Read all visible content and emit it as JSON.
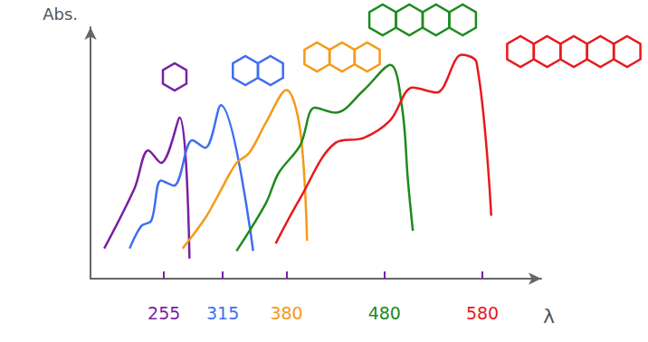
{
  "chart_data": {
    "type": "line",
    "x_label": "λ",
    "y_label": "Abs.",
    "xlim": [
      180,
      640
    ],
    "xticks": [
      255,
      315,
      380,
      480,
      580
    ],
    "ylim": [
      0,
      10
    ],
    "grid": false,
    "tick_labels": "x",
    "series": [
      {
        "color": "#7b1fa2",
        "x": [
          194,
          225,
          239,
          252,
          271,
          281
        ],
        "values": [
          1.2,
          3.6,
          5.1,
          4.6,
          6.4,
          0.8
        ]
      },
      {
        "color": "#3d6ff0",
        "x": [
          220,
          232,
          242,
          252,
          265,
          284,
          297,
          313,
          346
        ],
        "values": [
          1.2,
          2.1,
          2.3,
          3.9,
          3.7,
          5.5,
          5.2,
          6.9,
          1.1
        ]
      },
      {
        "color": "#f59a16",
        "x": [
          274,
          297,
          310,
          329,
          342,
          359,
          380,
          394,
          401
        ],
        "values": [
          1.2,
          2.4,
          3.3,
          4.6,
          5.0,
          6.2,
          7.5,
          5.9,
          1.5
        ]
      },
      {
        "color": "#1e8a1e",
        "x": [
          329,
          359,
          372,
          394,
          409,
          430,
          459,
          486,
          498,
          504,
          509
        ],
        "values": [
          1.1,
          3.0,
          4.2,
          5.3,
          6.8,
          6.6,
          7.5,
          8.5,
          6.8,
          3.9,
          1.9
        ]
      },
      {
        "color": "#e8191c",
        "x": [
          369,
          394,
          430,
          459,
          486,
          509,
          533,
          559,
          574,
          589
        ],
        "values": [
          1.4,
          3.2,
          5.4,
          5.6,
          6.3,
          7.6,
          7.4,
          8.9,
          8.6,
          2.5
        ]
      }
    ]
  }
}
